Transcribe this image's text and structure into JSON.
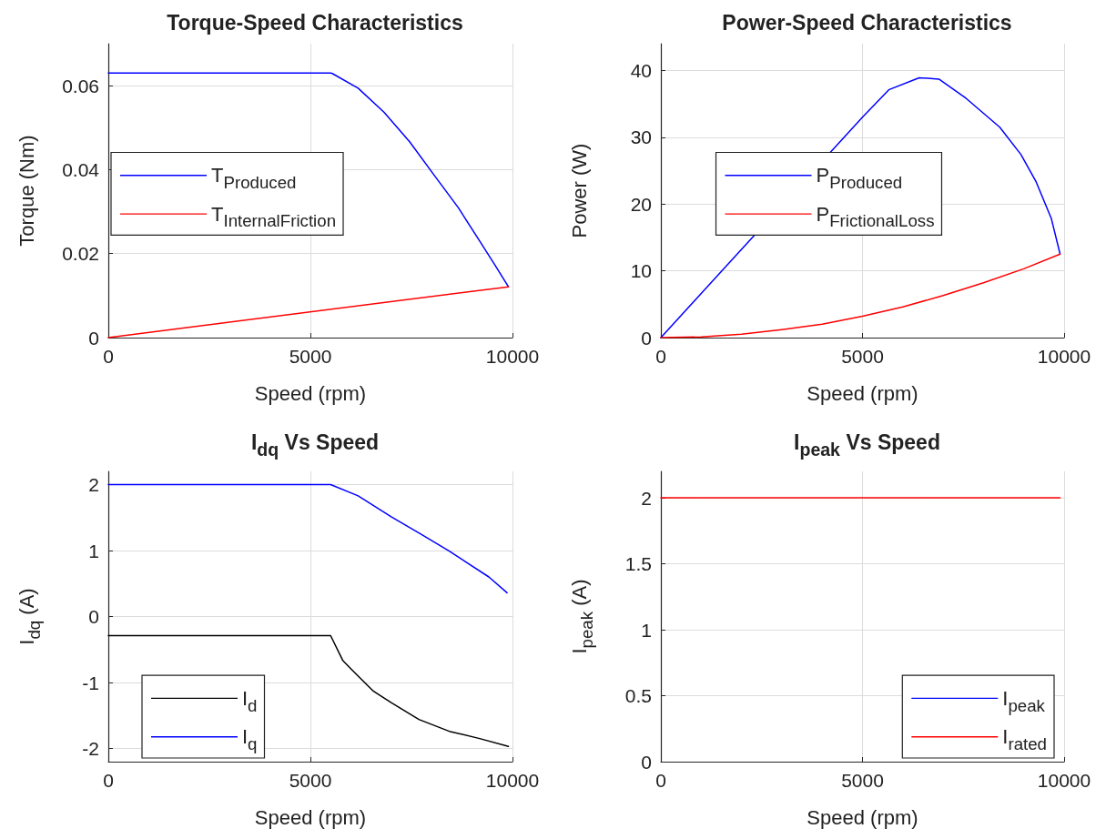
{
  "chart_data": [
    {
      "type": "line",
      "title": "Torque-Speed Characteristics",
      "xlabel": "Speed (rpm)",
      "ylabel": "Torque (Nm)",
      "xlim": [
        0,
        10000
      ],
      "xticks": [
        0,
        5000,
        10000
      ],
      "ylim": [
        0,
        0.07
      ],
      "yticks": [
        0,
        0.02,
        0.04,
        0.06
      ],
      "grid": true,
      "legend": "left",
      "series": [
        {
          "name": "T$_{Produced}$",
          "color": "#0000ff",
          "x": [
            0,
            5500,
            5541,
            6180,
            6820,
            7459,
            8060,
            8662,
            9188,
            9564,
            9900
          ],
          "values": [
            0.063,
            0.063,
            0.0629,
            0.0594,
            0.0537,
            0.0466,
            0.0387,
            0.0309,
            0.023,
            0.0173,
            0.0121
          ]
        },
        {
          "name": "T$_{InternalFriction}$",
          "color": "#ff0000",
          "x": [
            0,
            9900
          ],
          "values": [
            0,
            0.0121
          ]
        }
      ]
    },
    {
      "type": "line",
      "title": "Power-Speed Characteristics",
      "xlabel": "Speed (rpm)",
      "ylabel": "Power (W)",
      "xlim": [
        0,
        10000
      ],
      "xticks": [
        0,
        5000,
        10000
      ],
      "ylim": [
        0,
        44
      ],
      "yticks": [
        0,
        10,
        20,
        30,
        40
      ],
      "grid": true,
      "legend": "center",
      "series": [
        {
          "name": "P$_{Produced}$",
          "color": "#0000ff",
          "x": [
            0,
            1000,
            2000,
            4500,
            5000,
            5652,
            6405,
            6895,
            7573,
            8403,
            8930,
            9307,
            9684,
            9900
          ],
          "values": [
            0,
            6.6,
            13.2,
            29.7,
            33.0,
            37.1,
            38.9,
            38.7,
            35.8,
            31.5,
            27.4,
            23.3,
            17.8,
            12.5
          ]
        },
        {
          "name": "P$_{FrictionalLoss}$",
          "color": "#ff0000",
          "x": [
            0,
            1000,
            2000,
            3000,
            4000,
            5000,
            6000,
            7000,
            8000,
            9000,
            9900
          ],
          "values": [
            0,
            0.1,
            0.5,
            1.2,
            2.0,
            3.2,
            4.6,
            6.3,
            8.2,
            10.3,
            12.5
          ]
        }
      ]
    },
    {
      "type": "line",
      "title": "I$_{dq}$ Vs Speed",
      "xlabel": "Speed (rpm)",
      "ylabel": "I$_{dq}$ (A)",
      "xlim": [
        0,
        10000
      ],
      "xticks": [
        0,
        5000,
        10000
      ],
      "ylim": [
        -2.2,
        2.2
      ],
      "yticks": [
        -2,
        -1,
        0,
        1,
        2
      ],
      "grid": true,
      "legend": "bottom left",
      "series": [
        {
          "name": "I$_{d}$",
          "color": "#000000",
          "x": [
            0,
            5500,
            5805,
            6030,
            6556,
            7008,
            7684,
            8436,
            9188,
            9900
          ],
          "values": [
            -0.29,
            -0.29,
            -0.67,
            -0.81,
            -1.13,
            -1.31,
            -1.56,
            -1.74,
            -1.85,
            -1.97
          ]
        },
        {
          "name": "I$_{q}$",
          "color": "#0000ff",
          "x": [
            0,
            5500,
            6180,
            7008,
            7759,
            8436,
            9414,
            9865
          ],
          "values": [
            2.0,
            2.0,
            1.83,
            1.51,
            1.24,
            0.99,
            0.6,
            0.36
          ]
        }
      ]
    },
    {
      "type": "line",
      "title": "I$_{peak}$ Vs Speed",
      "xlabel": "Speed (rpm)",
      "ylabel": "I$_{peak}$ (A)",
      "xlim": [
        0,
        10000
      ],
      "xticks": [
        0,
        5000,
        10000
      ],
      "ylim": [
        0,
        2.2
      ],
      "yticks": [
        0,
        0.5,
        1,
        1.5,
        2
      ],
      "grid": true,
      "legend": "bottom right",
      "x": [
        0,
        9900
      ],
      "series": [
        {
          "name": "I$_{peak}$",
          "color": "#0000ff",
          "values": [
            null,
            null
          ]
        },
        {
          "name": "I$_{rated}$",
          "color": "#ff0000",
          "values": [
            2,
            2
          ]
        }
      ]
    }
  ]
}
